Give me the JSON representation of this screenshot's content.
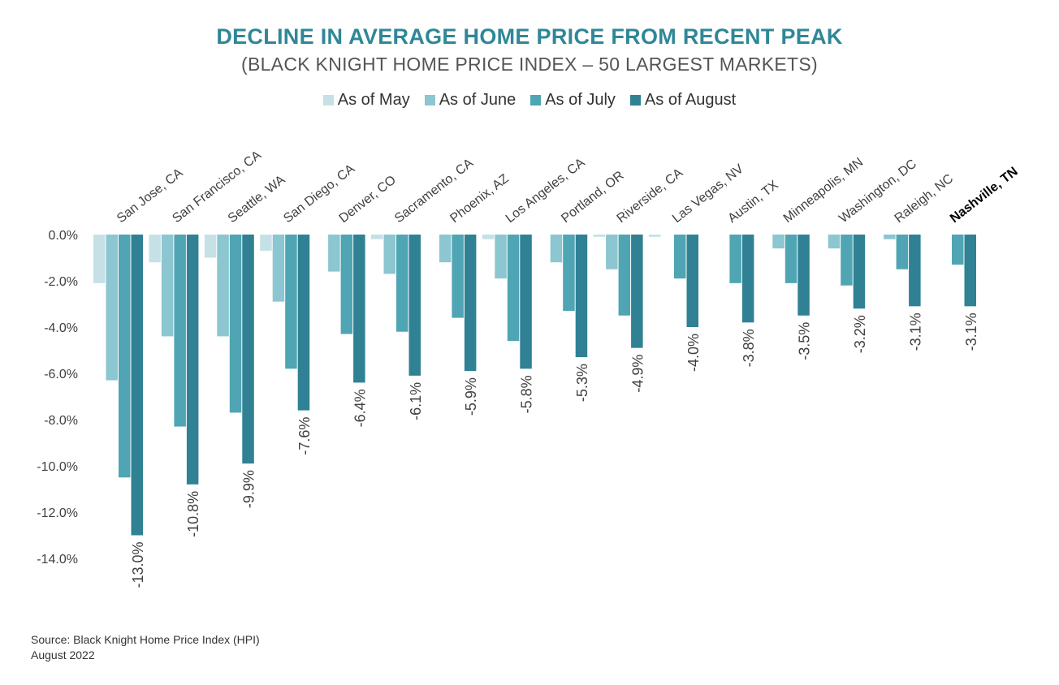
{
  "colors": {
    "title": "#2f8797",
    "series": [
      "#c5e1e6",
      "#8cc6d0",
      "#4fa5b3",
      "#2f8193"
    ],
    "axis_text": "#404040",
    "highlight_label": "#000000"
  },
  "chart_data": {
    "type": "bar",
    "title": "DECLINE IN AVERAGE HOME PRICE FROM RECENT PEAK",
    "subtitle": "(BLACK KNIGHT HOME PRICE INDEX – 50 LARGEST MARKETS)",
    "categories": [
      "San Jose, CA",
      "San Francisco, CA",
      "Seattle, WA",
      "San Diego, CA",
      "Denver, CO",
      "Sacramento, CA",
      "Phoenix, AZ",
      "Los Angeles, CA",
      "Portland, OR",
      "Riverside, CA",
      "Las Vegas, NV",
      "Austin, TX",
      "Minneapolis, MN",
      "Washington, DC",
      "Raleigh, NC",
      "Nashville, TN"
    ],
    "highlight_category": "Nashville, TN",
    "series": [
      {
        "name": "As of May",
        "values": [
          -2.1,
          -1.2,
          -1.0,
          -0.7,
          0.0,
          -0.2,
          0.0,
          -0.2,
          0.0,
          -0.1,
          -0.1,
          0.0,
          0.0,
          0.0,
          0.0,
          0.0
        ]
      },
      {
        "name": "As of June",
        "values": [
          -6.3,
          -4.4,
          -4.4,
          -2.9,
          -1.6,
          -1.7,
          -1.2,
          -1.9,
          -1.2,
          -1.5,
          0.0,
          0.0,
          -0.6,
          -0.6,
          -0.2,
          0.0
        ]
      },
      {
        "name": "As of July",
        "values": [
          -10.5,
          -8.3,
          -7.7,
          -5.8,
          -4.3,
          -4.2,
          -3.6,
          -4.6,
          -3.3,
          -3.5,
          -1.9,
          -2.1,
          -2.1,
          -2.2,
          -1.5,
          -1.3
        ]
      },
      {
        "name": "As of August",
        "values": [
          -13.0,
          -10.8,
          -9.9,
          -7.6,
          -6.4,
          -6.1,
          -5.9,
          -5.8,
          -5.3,
          -4.9,
          -4.0,
          -3.8,
          -3.5,
          -3.2,
          -3.1,
          -3.1
        ]
      }
    ],
    "data_labels": [
      "-13.0%",
      "-10.8%",
      "-9.9%",
      "-7.6%",
      "-6.4%",
      "-6.1%",
      "-5.9%",
      "-5.8%",
      "-5.3%",
      "-4.9%",
      "-4.0%",
      "-3.8%",
      "-3.5%",
      "-3.2%",
      "-3.1%",
      "-3.1%"
    ],
    "yticks": [
      0,
      -2,
      -4,
      -6,
      -8,
      -10,
      -12,
      -14
    ],
    "ytick_labels": [
      "0.0%",
      "-2.0%",
      "-4.0%",
      "-6.0%",
      "-8.0%",
      "-10.0%",
      "-12.0%",
      "-14.0%"
    ],
    "ylim": [
      -14,
      0
    ],
    "grid": false,
    "legend_position": "top-center"
  },
  "source": {
    "line1": "Source: Black Knight Home Price Index (HPI)",
    "line2": "August 2022"
  }
}
